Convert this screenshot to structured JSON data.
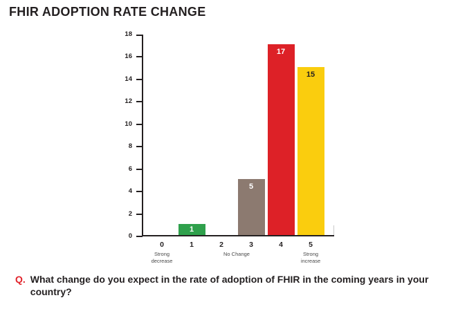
{
  "title": "FHIR ADOPTION RATE CHANGE",
  "question": {
    "prefix": "Q.",
    "text": "What change do you expect in the rate of adoption of FHIR in the coming years in your country?"
  },
  "colors": {
    "title_text": "#231F20",
    "axis": "#231F20",
    "question_prefix_red": "#E1232B",
    "xaxis_sublabel_gray": "#4A4A4A"
  },
  "chart_data": {
    "type": "bar",
    "title": "FHIR ADOPTION RATE CHANGE",
    "xlabel": "",
    "ylabel": "",
    "categories": [
      "0",
      "1",
      "2",
      "3",
      "4",
      "5"
    ],
    "category_sublabels": [
      [
        "Strong",
        "decrease"
      ],
      [],
      [],
      [
        "No Change"
      ],
      [],
      [
        "Strong",
        "increase"
      ]
    ],
    "values": [
      0,
      1,
      0,
      5,
      17,
      15
    ],
    "bar_colors": [
      "#2FA04C",
      "#2FA04C",
      "#8C7A70",
      "#8C7A70",
      "#DD2127",
      "#FACD0E"
    ],
    "value_label_colors": [
      "#FFFFFF",
      "#FFFFFF",
      "#FFFFFF",
      "#FFFFFF",
      "#FFFFFF",
      "#231F20"
    ],
    "ylim": [
      0,
      18
    ],
    "ytick_step": 2,
    "grid": false,
    "legend": false
  }
}
